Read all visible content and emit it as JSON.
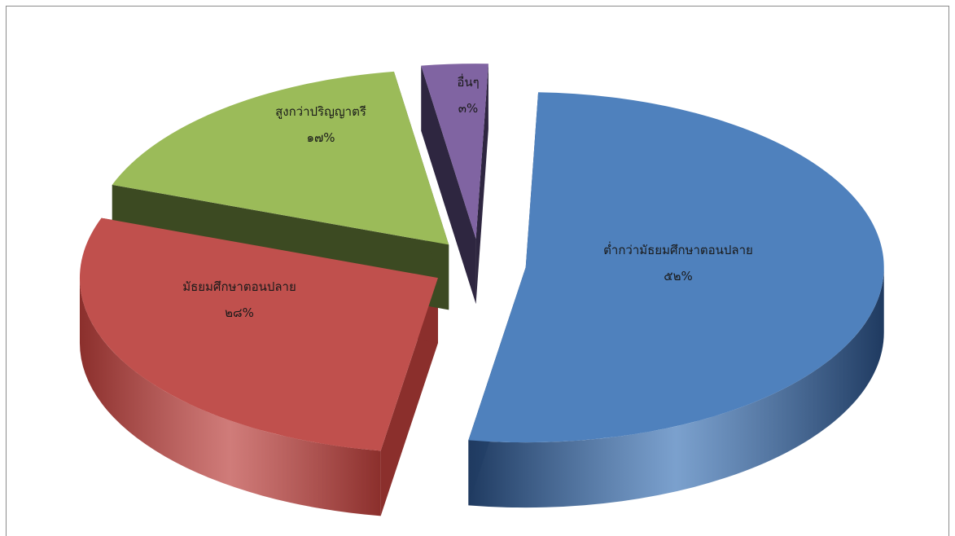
{
  "chart_data": {
    "type": "pie",
    "style": "3d-exploded",
    "legend": "none",
    "percent_format": "thai-numerals",
    "slices": [
      {
        "category": "ต่ำกว่ามัธยมศึกษาตอนปลาย",
        "value": 52,
        "label": "๕๒%",
        "top_color": "#4f81bd",
        "side_color": "#1f3a60"
      },
      {
        "category": "มัธยมศึกษาตอนปลาย",
        "value": 28,
        "label": "๒๘%",
        "top_color": "#c0504d",
        "side_color": "#8b2f2c"
      },
      {
        "category": "สูงกว่าปริญญาตรี",
        "value": 17,
        "label": "๑๗%",
        "top_color": "#9bbb59",
        "side_color": "#3c4a22"
      },
      {
        "category": "อื่นๆ",
        "value": 3,
        "label": "๓%",
        "top_color": "#8064a2",
        "side_color": "#2e2640"
      }
    ]
  }
}
